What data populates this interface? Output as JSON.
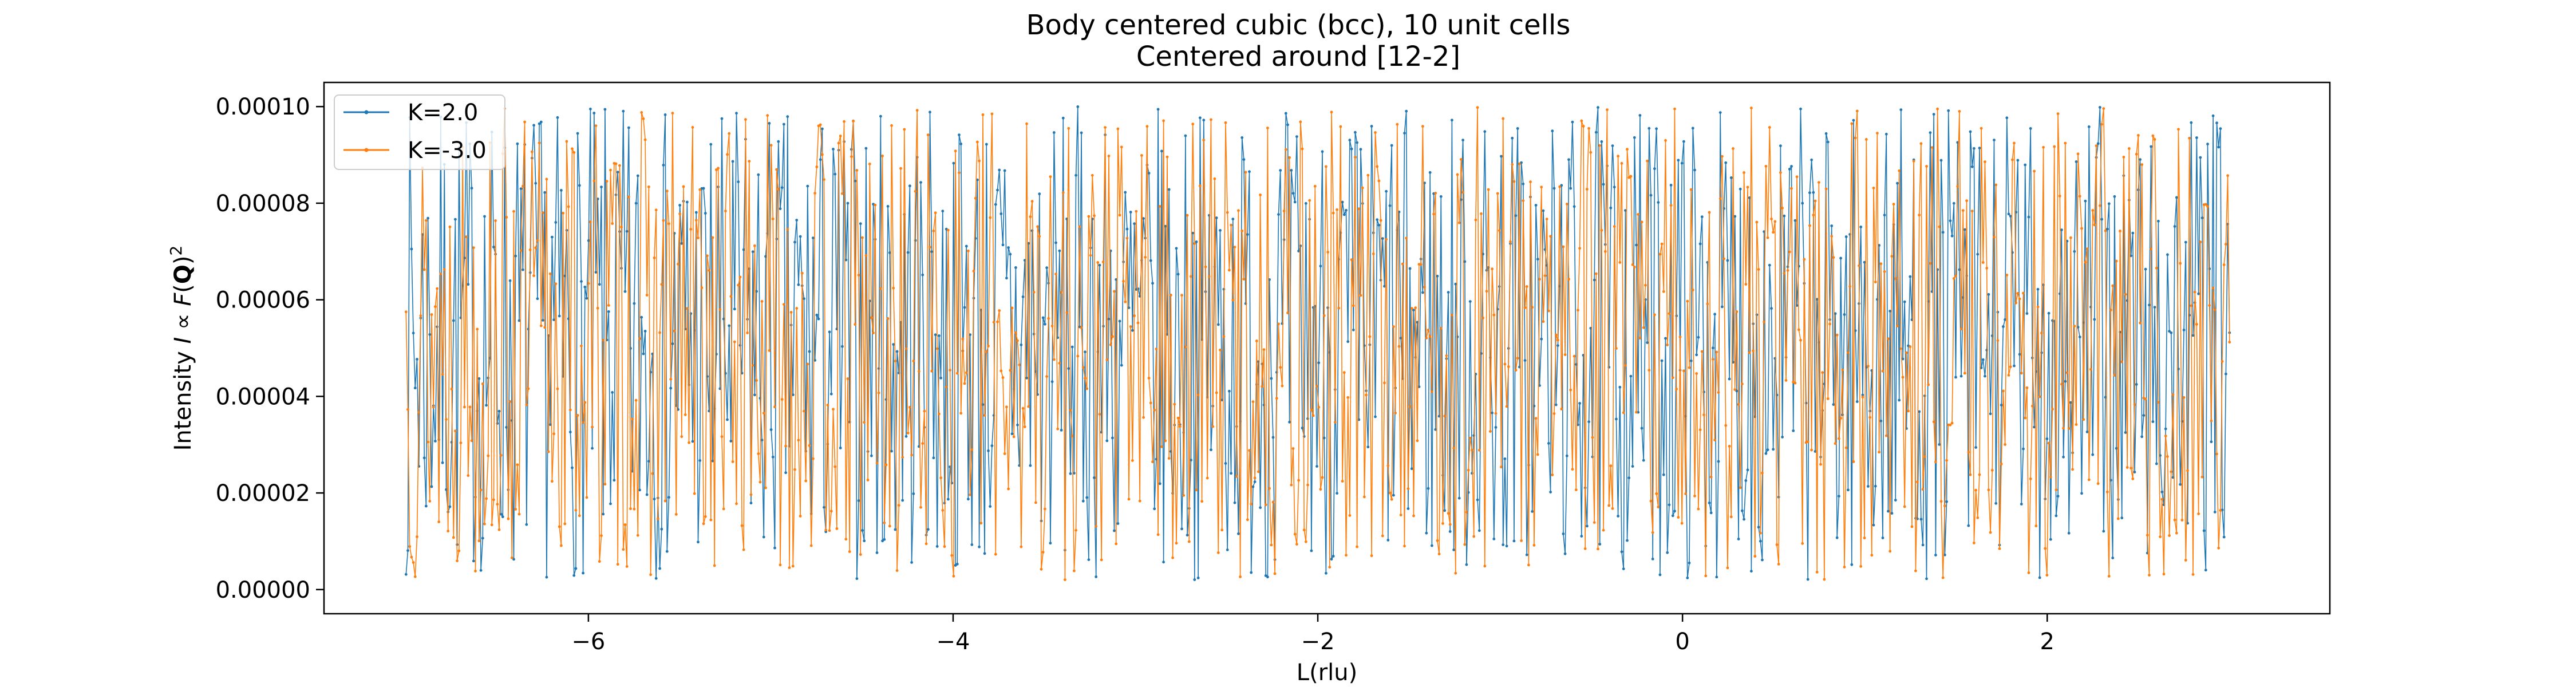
{
  "chart_data": {
    "type": "line",
    "title_line1": "Body centered cubic (bcc), 10 unit cells",
    "title_line2": "Centered around [12-2]",
    "xlabel": "L(rlu)",
    "ylabel_parts": {
      "prefix": "Intensity ",
      "italic_I": "I",
      "prop": " ∝ ",
      "italic_F": "F",
      "open_paren": "(",
      "bold_Q": "Q",
      "close_paren": ")",
      "superscript": "2"
    },
    "xlim": [
      -7.45,
      3.55
    ],
    "ylim": [
      -5e-06,
      0.000105
    ],
    "x_ticks": [
      -6,
      -4,
      -2,
      0,
      2
    ],
    "x_tick_labels": [
      "−6",
      "−4",
      "−2",
      "0",
      "2"
    ],
    "y_ticks": [
      0,
      2e-05,
      4e-05,
      6e-05,
      8e-05,
      0.0001
    ],
    "y_tick_labels": [
      "0.00000",
      "0.00002",
      "0.00004",
      "0.00006",
      "0.00008",
      "0.00010"
    ],
    "x_range": [
      -7.0,
      3.0
    ],
    "n_points": 1000,
    "legend_placement": "upper-left",
    "grid": false,
    "series": [
      {
        "name": "K=2.0",
        "color": "#1f77b4",
        "value_range": [
          2e-06,
          0.0001
        ],
        "seed": 7
      },
      {
        "name": "K=-3.0",
        "color": "#ff7f0e",
        "value_range": [
          2e-06,
          0.0001
        ],
        "seed": 13
      }
    ]
  }
}
